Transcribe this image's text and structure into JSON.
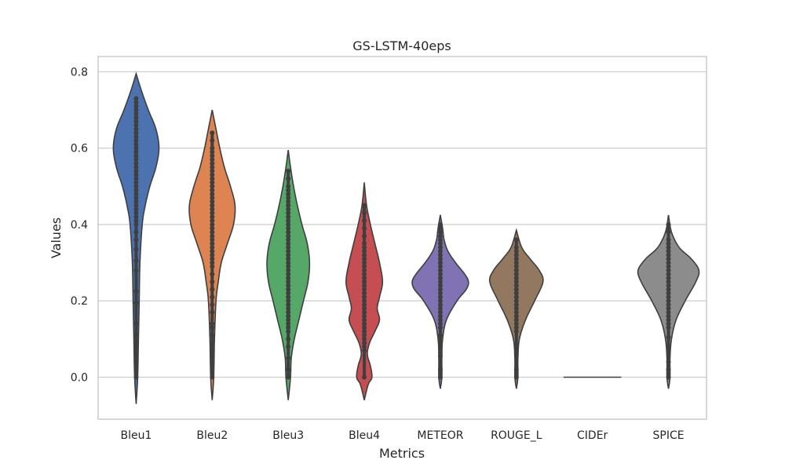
{
  "chart_data": {
    "type": "violin",
    "title": "GS-LSTM-40eps",
    "xlabel": "Metrics",
    "ylabel": "Values",
    "ylim": [
      -0.11,
      0.84
    ],
    "yticks": [
      0.0,
      0.2,
      0.4,
      0.6,
      0.8
    ],
    "ytick_labels": [
      "0.0",
      "0.2",
      "0.4",
      "0.6",
      "0.8"
    ],
    "grid": "horizontal",
    "inner": "points",
    "categories": [
      "Bleu1",
      "Bleu2",
      "Bleu3",
      "Bleu4",
      "METEOR",
      "ROUGE_L",
      "CIDEr",
      "SPICE"
    ],
    "series": [
      {
        "category": "Bleu1",
        "color": "#4c72b0",
        "min": -0.07,
        "max": 0.795,
        "profile": [
          [
            -0.07,
            0
          ],
          [
            0.0,
            0.02
          ],
          [
            0.1,
            0.03
          ],
          [
            0.2,
            0.04
          ],
          [
            0.3,
            0.05
          ],
          [
            0.4,
            0.08
          ],
          [
            0.45,
            0.12
          ],
          [
            0.5,
            0.18
          ],
          [
            0.55,
            0.26
          ],
          [
            0.6,
            0.3
          ],
          [
            0.65,
            0.26
          ],
          [
            0.7,
            0.16
          ],
          [
            0.75,
            0.07
          ],
          [
            0.795,
            0
          ]
        ],
        "points": [
          0.0,
          0.11,
          0.14,
          0.195,
          0.225,
          0.28,
          0.305,
          0.335,
          0.36,
          0.38,
          0.4,
          0.41,
          0.42,
          0.43,
          0.44,
          0.45,
          0.46,
          0.47,
          0.48,
          0.49,
          0.5,
          0.51,
          0.52,
          0.53,
          0.54,
          0.55,
          0.56,
          0.57,
          0.58,
          0.59,
          0.6,
          0.61,
          0.62,
          0.63,
          0.64,
          0.65,
          0.66,
          0.67,
          0.68,
          0.69,
          0.7,
          0.71,
          0.72,
          0.73
        ]
      },
      {
        "category": "Bleu2",
        "color": "#dd8452",
        "min": -0.06,
        "max": 0.7,
        "profile": [
          [
            -0.06,
            0
          ],
          [
            0.0,
            0.02
          ],
          [
            0.1,
            0.03
          ],
          [
            0.2,
            0.05
          ],
          [
            0.25,
            0.08
          ],
          [
            0.3,
            0.12
          ],
          [
            0.35,
            0.2
          ],
          [
            0.4,
            0.28
          ],
          [
            0.45,
            0.3
          ],
          [
            0.5,
            0.24
          ],
          [
            0.55,
            0.16
          ],
          [
            0.6,
            0.1
          ],
          [
            0.65,
            0.05
          ],
          [
            0.7,
            0
          ]
        ],
        "points": [
          0.0,
          0.055,
          0.11,
          0.13,
          0.14,
          0.17,
          0.19,
          0.21,
          0.23,
          0.25,
          0.27,
          0.29,
          0.3,
          0.31,
          0.32,
          0.33,
          0.34,
          0.35,
          0.36,
          0.37,
          0.38,
          0.39,
          0.4,
          0.41,
          0.42,
          0.43,
          0.44,
          0.45,
          0.46,
          0.47,
          0.48,
          0.49,
          0.5,
          0.51,
          0.52,
          0.53,
          0.54,
          0.55,
          0.56,
          0.57,
          0.58,
          0.59,
          0.6,
          0.62,
          0.64
        ]
      },
      {
        "category": "Bleu3",
        "color": "#55a868",
        "min": -0.06,
        "max": 0.595,
        "profile": [
          [
            -0.06,
            0
          ],
          [
            0.0,
            0.03
          ],
          [
            0.05,
            0.04
          ],
          [
            0.1,
            0.08
          ],
          [
            0.15,
            0.14
          ],
          [
            0.2,
            0.2
          ],
          [
            0.25,
            0.26
          ],
          [
            0.3,
            0.28
          ],
          [
            0.35,
            0.25
          ],
          [
            0.4,
            0.18
          ],
          [
            0.45,
            0.12
          ],
          [
            0.5,
            0.07
          ],
          [
            0.55,
            0.03
          ],
          [
            0.595,
            0
          ]
        ],
        "points": [
          0.0,
          0.02,
          0.05,
          0.08,
          0.1,
          0.12,
          0.13,
          0.14,
          0.15,
          0.16,
          0.17,
          0.18,
          0.19,
          0.2,
          0.21,
          0.22,
          0.23,
          0.24,
          0.25,
          0.26,
          0.27,
          0.28,
          0.29,
          0.3,
          0.31,
          0.32,
          0.33,
          0.34,
          0.35,
          0.36,
          0.37,
          0.38,
          0.39,
          0.4,
          0.41,
          0.42,
          0.43,
          0.44,
          0.45,
          0.46,
          0.47,
          0.48,
          0.49,
          0.5,
          0.52,
          0.54
        ]
      },
      {
        "category": "Bleu4",
        "color": "#c44e52",
        "min": -0.06,
        "max": 0.51,
        "profile": [
          [
            -0.06,
            0
          ],
          [
            -0.02,
            0.05
          ],
          [
            0.0,
            0.1
          ],
          [
            0.03,
            0.08
          ],
          [
            0.06,
            0.04
          ],
          [
            0.09,
            0.07
          ],
          [
            0.12,
            0.14
          ],
          [
            0.15,
            0.2
          ],
          [
            0.18,
            0.17
          ],
          [
            0.21,
            0.2
          ],
          [
            0.25,
            0.24
          ],
          [
            0.3,
            0.2
          ],
          [
            0.35,
            0.14
          ],
          [
            0.4,
            0.08
          ],
          [
            0.45,
            0.03
          ],
          [
            0.51,
            0
          ]
        ],
        "points": [
          0.0,
          0.07,
          0.08,
          0.09,
          0.1,
          0.11,
          0.12,
          0.13,
          0.14,
          0.15,
          0.16,
          0.17,
          0.18,
          0.19,
          0.2,
          0.21,
          0.22,
          0.23,
          0.24,
          0.25,
          0.26,
          0.27,
          0.28,
          0.29,
          0.3,
          0.31,
          0.32,
          0.33,
          0.34,
          0.35,
          0.37,
          0.39,
          0.41,
          0.43,
          0.45
        ]
      },
      {
        "category": "METEOR",
        "color": "#8172b3",
        "min": -0.03,
        "max": 0.425,
        "profile": [
          [
            -0.03,
            0
          ],
          [
            0.0,
            0.02
          ],
          [
            0.05,
            0.02
          ],
          [
            0.1,
            0.03
          ],
          [
            0.15,
            0.08
          ],
          [
            0.2,
            0.22
          ],
          [
            0.23,
            0.34
          ],
          [
            0.25,
            0.37
          ],
          [
            0.27,
            0.32
          ],
          [
            0.3,
            0.2
          ],
          [
            0.33,
            0.1
          ],
          [
            0.36,
            0.05
          ],
          [
            0.39,
            0.03
          ],
          [
            0.425,
            0
          ]
        ],
        "points": [
          0.0,
          0.02,
          0.055,
          0.09,
          0.11,
          0.13,
          0.14,
          0.15,
          0.16,
          0.17,
          0.18,
          0.19,
          0.2,
          0.21,
          0.22,
          0.23,
          0.24,
          0.25,
          0.26,
          0.27,
          0.28,
          0.29,
          0.3,
          0.31,
          0.32,
          0.33,
          0.34,
          0.35,
          0.36,
          0.37,
          0.38,
          0.39,
          0.4
        ]
      },
      {
        "category": "ROUGE_L",
        "color": "#937860",
        "min": -0.03,
        "max": 0.385,
        "profile": [
          [
            -0.03,
            0
          ],
          [
            0.0,
            0.02
          ],
          [
            0.05,
            0.02
          ],
          [
            0.1,
            0.04
          ],
          [
            0.15,
            0.12
          ],
          [
            0.2,
            0.24
          ],
          [
            0.25,
            0.35
          ],
          [
            0.28,
            0.3
          ],
          [
            0.31,
            0.18
          ],
          [
            0.34,
            0.07
          ],
          [
            0.385,
            0
          ]
        ],
        "points": [
          0.0,
          0.02,
          0.06,
          0.085,
          0.12,
          0.13,
          0.14,
          0.15,
          0.16,
          0.17,
          0.18,
          0.19,
          0.2,
          0.21,
          0.22,
          0.23,
          0.24,
          0.25,
          0.26,
          0.27,
          0.28,
          0.29,
          0.3,
          0.31,
          0.32,
          0.33,
          0.34,
          0.36
        ]
      },
      {
        "category": "CIDEr",
        "color": "#8c8c8c",
        "min": 0.0,
        "max": 0.0,
        "profile": [],
        "points": []
      },
      {
        "category": "SPICE",
        "color": "#8c8c8c",
        "min": -0.03,
        "max": 0.425,
        "profile": [
          [
            -0.03,
            0
          ],
          [
            0.0,
            0.02
          ],
          [
            0.05,
            0.02
          ],
          [
            0.1,
            0.04
          ],
          [
            0.15,
            0.1
          ],
          [
            0.2,
            0.22
          ],
          [
            0.25,
            0.36
          ],
          [
            0.28,
            0.4
          ],
          [
            0.31,
            0.3
          ],
          [
            0.34,
            0.14
          ],
          [
            0.38,
            0.04
          ],
          [
            0.425,
            0
          ]
        ],
        "points": [
          0.0,
          0.02,
          0.04,
          0.075,
          0.105,
          0.13,
          0.14,
          0.15,
          0.16,
          0.17,
          0.18,
          0.19,
          0.2,
          0.21,
          0.22,
          0.23,
          0.24,
          0.25,
          0.26,
          0.27,
          0.28,
          0.29,
          0.3,
          0.31,
          0.32,
          0.33,
          0.34,
          0.35,
          0.36,
          0.38,
          0.4
        ]
      }
    ]
  }
}
